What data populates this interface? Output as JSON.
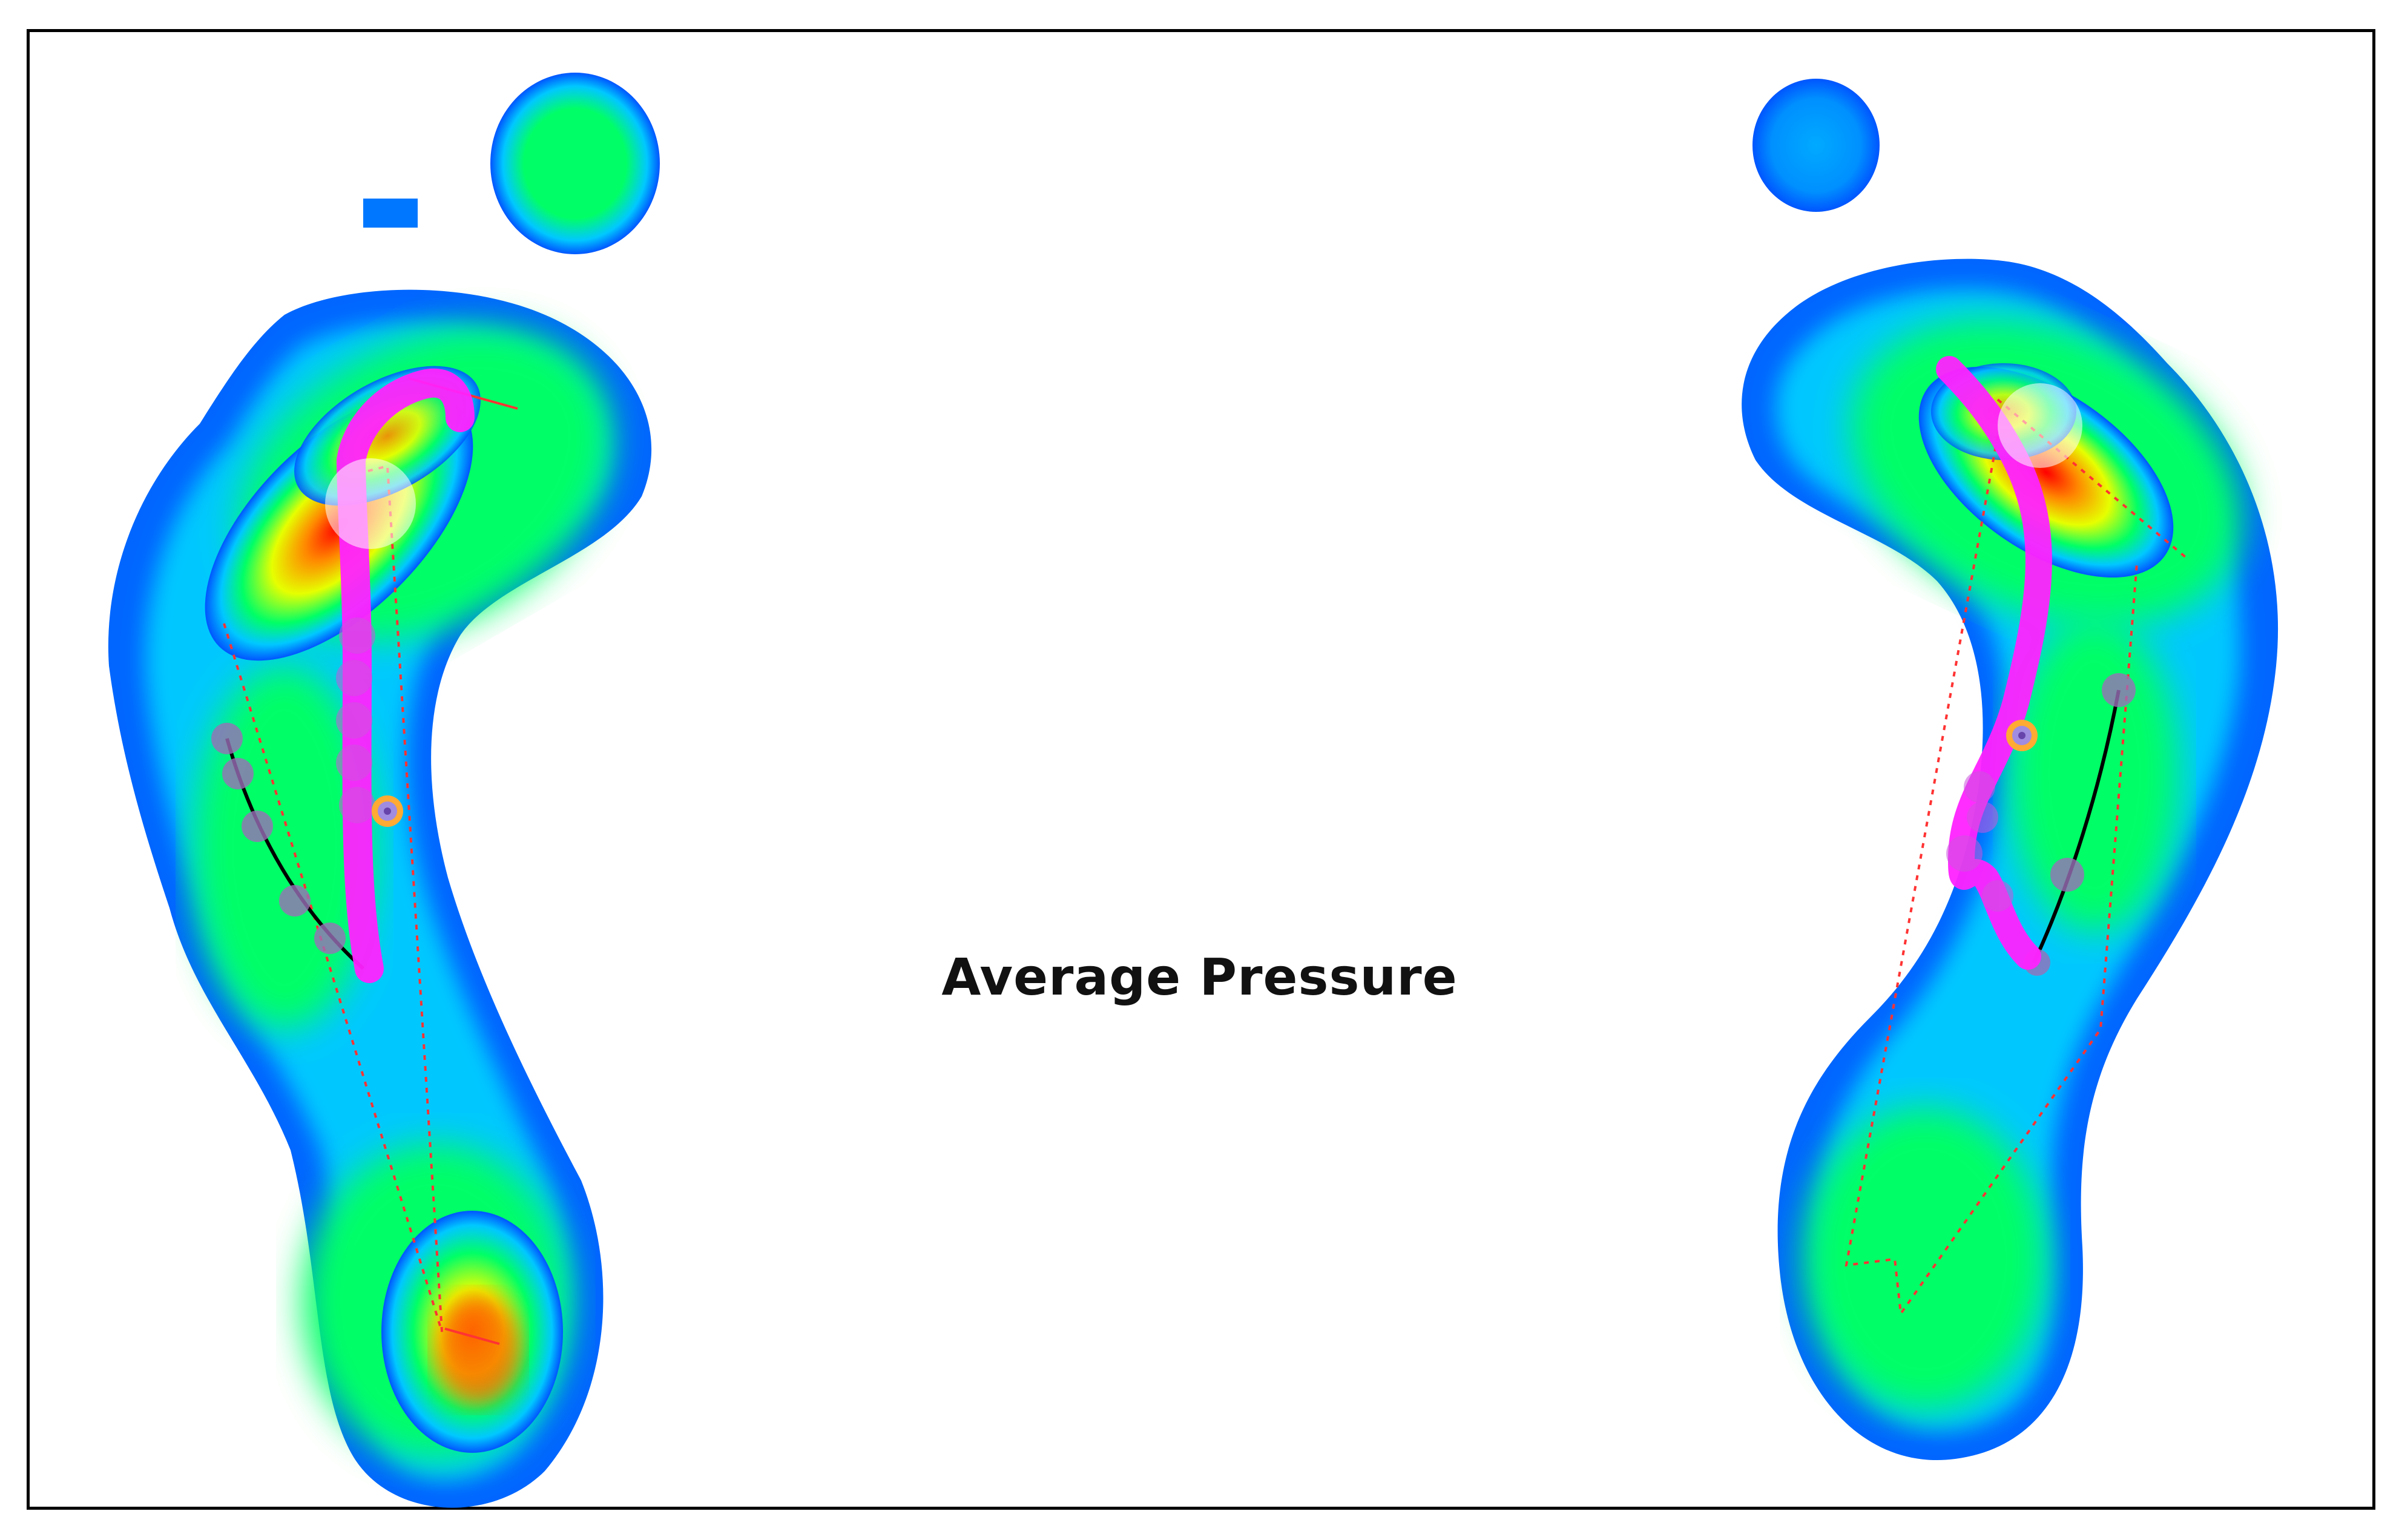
{
  "title": "Average Pressure",
  "colors": {
    "background": "#ffffff",
    "frame": "#000000",
    "scale": [
      "#0055ff",
      "#00c8ff",
      "#00ff66",
      "#e6ff00",
      "#ff8800",
      "#ff0000"
    ],
    "cop_trace": "#ff22ff",
    "gait_line": "#ff3333",
    "arch_line": "#000000",
    "marker_points": "#9a6fb8"
  }
}
